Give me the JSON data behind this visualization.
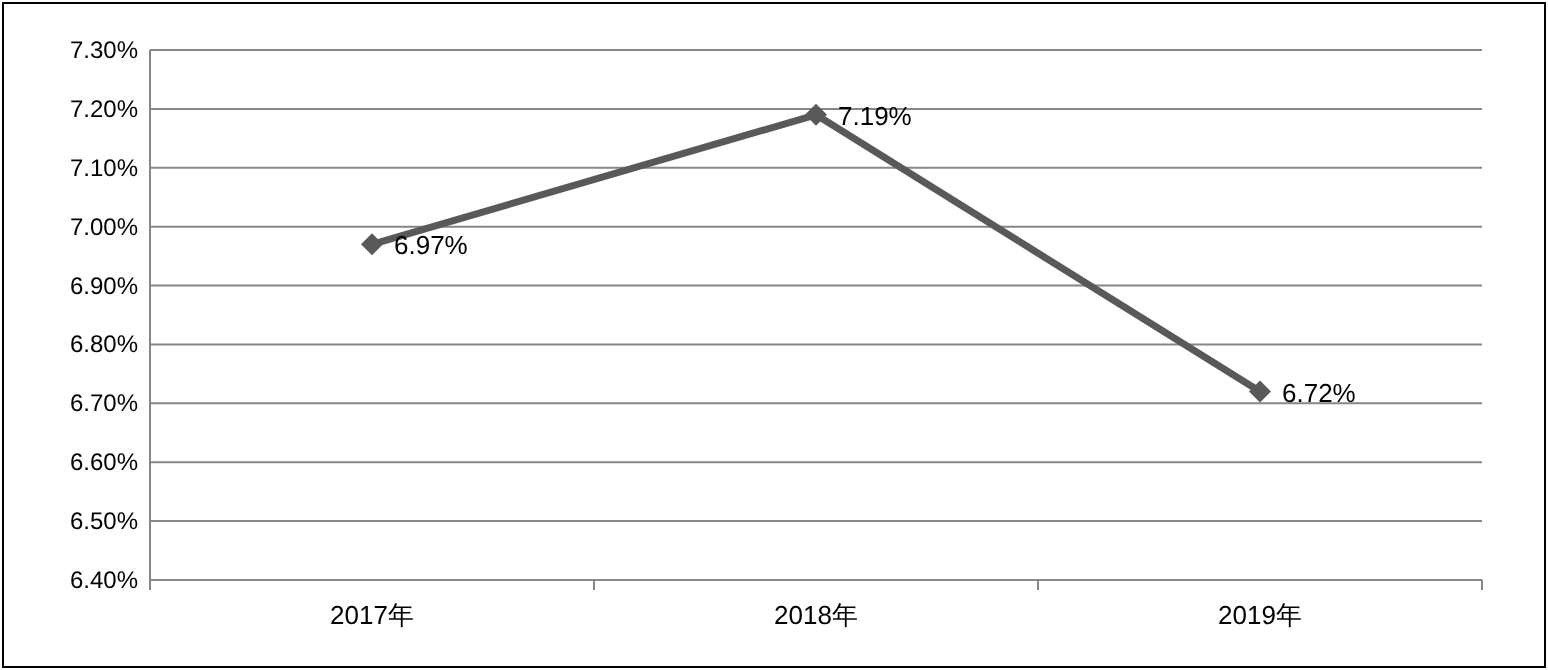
{
  "chart_data": {
    "type": "line",
    "categories": [
      "2017年",
      "2018年",
      "2019年"
    ],
    "series": [
      {
        "color": "#595959",
        "values": [
          6.97,
          7.19,
          6.72
        ],
        "value_labels": [
          "6.97%",
          "7.19%",
          "6.72%"
        ]
      }
    ],
    "ylim": [
      6.4,
      7.3
    ],
    "yticks": [
      {
        "value": 6.4,
        "label": "6.40%"
      },
      {
        "value": 6.5,
        "label": "6.50%"
      },
      {
        "value": 6.6,
        "label": "6.60%"
      },
      {
        "value": 6.7,
        "label": "6.70%"
      },
      {
        "value": 6.8,
        "label": "6.80%"
      },
      {
        "value": 6.9,
        "label": "6.90%"
      },
      {
        "value": 7.0,
        "label": "7.00%"
      },
      {
        "value": 7.1,
        "label": "7.10%"
      },
      {
        "value": 7.2,
        "label": "7.20%"
      },
      {
        "value": 7.3,
        "label": "7.30%"
      }
    ],
    "grid": "y",
    "marker": "diamond",
    "line_style": "solid"
  }
}
